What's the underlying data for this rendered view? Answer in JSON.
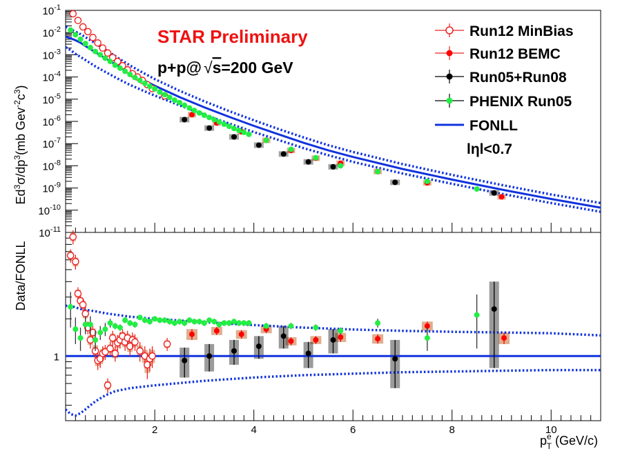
{
  "chart_data": [
    {
      "type": "scatter",
      "panel": "upper",
      "title": "",
      "ylabel": "Ed³σ/dp³(mb GeV⁻²c³)",
      "ylabel_parts": [
        "Ed",
        "3",
        "σ/dp",
        "3",
        "(mb Gev",
        "-2",
        "c",
        "3",
        ")"
      ],
      "xlim": [
        0.2,
        11
      ],
      "ylim": [
        1e-11,
        0.1
      ],
      "log_y": true,
      "y_tick_labels": [
        {
          "v": 0.1,
          "base": "10",
          "exp": "-1"
        },
        {
          "v": 0.01,
          "base": "10",
          "exp": "-2"
        },
        {
          "v": 0.001,
          "base": "10",
          "exp": "-3"
        },
        {
          "v": 0.0001,
          "base": "10",
          "exp": "-4"
        },
        {
          "v": 1e-05,
          "base": "10",
          "exp": "-5"
        },
        {
          "v": 1e-06,
          "base": "10",
          "exp": "-6"
        },
        {
          "v": 1e-07,
          "base": "10",
          "exp": "-7"
        },
        {
          "v": 1e-08,
          "base": "10",
          "exp": "-8"
        },
        {
          "v": 1e-09,
          "base": "10",
          "exp": "-9"
        },
        {
          "v": 1e-10,
          "base": "10",
          "exp": "-10"
        },
        {
          "v": 1e-11,
          "base": "10",
          "exp": "-11"
        }
      ],
      "annotations": {
        "preliminary": "STAR Preliminary",
        "energy_prefix": "p+p@",
        "energy_sqrt": "√",
        "energy_s": "s",
        "energy_suffix": "=200 GeV",
        "eta_cut": "lηl<0.7"
      },
      "legend": {
        "placement": "top-right",
        "entries": [
          "Run12 MinBias",
          "Run12 BEMC",
          "Run05+Run08",
          "PHENIX Run05",
          "FONLL"
        ]
      },
      "series": [
        {
          "name": "Run12 MinBias",
          "color": "#ee2222",
          "marker": "open-circle",
          "x": [
            0.35,
            0.45,
            0.55,
            0.65,
            0.75,
            0.85,
            0.95,
            1.05,
            1.15,
            1.25,
            1.35,
            1.45,
            1.55,
            1.65,
            1.75,
            1.85,
            1.95,
            2.2
          ],
          "y": [
            0.07,
            0.035,
            0.018,
            0.011,
            0.006,
            0.0034,
            0.002,
            0.0012,
            0.00075,
            0.0005,
            0.00032,
            0.00021,
            0.00014,
            0.0001,
            7e-05,
            4.5e-05,
            3e-05,
            1.4e-05
          ]
        },
        {
          "name": "Run12 BEMC",
          "color": "#ff0000",
          "marker": "filled-circle",
          "x": [
            2.75,
            3.25,
            3.75,
            4.25,
            4.75,
            5.25,
            5.75,
            6.5,
            7.5,
            9.0
          ],
          "y": [
            2e-06,
            8.5e-07,
            3.4e-07,
            1.4e-07,
            4.9e-08,
            2.2e-08,
            1.3e-08,
            5.5e-09,
            1.7e-09,
            4e-10
          ]
        },
        {
          "name": "Run05+Run08",
          "color": "#000000",
          "marker": "filled-circle",
          "x": [
            2.6,
            3.1,
            3.6,
            4.1,
            4.6,
            5.1,
            5.6,
            6.85,
            8.85
          ],
          "y": [
            1.2e-06,
            5e-07,
            2e-07,
            8.5e-08,
            3.4e-08,
            1.5e-08,
            9e-09,
            1.8e-09,
            6e-10
          ]
        },
        {
          "name": "PHENIX Run05",
          "color": "#22ee44",
          "marker": "filled-circle",
          "x": [
            0.3,
            0.4,
            0.5,
            0.6,
            0.7,
            0.8,
            0.9,
            1.0,
            1.1,
            1.2,
            1.3,
            1.4,
            1.5,
            1.6,
            1.7,
            1.8,
            1.9,
            2.0,
            2.1,
            2.2,
            2.3,
            2.4,
            2.5,
            2.6,
            2.7,
            2.8,
            2.9,
            3.0,
            3.1,
            3.2,
            3.3,
            3.4,
            3.5,
            3.6,
            3.7,
            3.8,
            3.9,
            4.25,
            4.75,
            5.25,
            5.75,
            6.5,
            7.5,
            8.5
          ],
          "y": [
            0.013,
            0.008,
            0.005,
            0.0032,
            0.0021,
            0.0014,
            0.001,
            0.0007,
            0.0005,
            0.00034,
            0.00025,
            0.00018,
            0.00013,
            9.5e-05,
            7e-05,
            5.2e-05,
            3.8e-05,
            2.9e-05,
            2.1e-05,
            1.6e-05,
            1.2e-05,
            9e-06,
            7e-06,
            5.3e-06,
            4e-06,
            3.1e-06,
            2.4e-06,
            1.9e-06,
            1.5e-06,
            1.2e-06,
            9.5e-07,
            7.5e-07,
            6e-07,
            4.8e-07,
            3.9e-07,
            3.2e-07,
            2.6e-07,
            1.4e-07,
            5.5e-08,
            2.3e-08,
            1e-08,
            5.5e-09,
            2e-09,
            9e-10
          ]
        },
        {
          "name": "FONLL",
          "color": "#1133dd",
          "marker": "line",
          "x": [
            0.2,
            0.3,
            0.4,
            0.5,
            0.6,
            0.8,
            1.0,
            1.25,
            1.5,
            1.75,
            2.0,
            2.5,
            3.0,
            3.5,
            4.0,
            4.5,
            5.0,
            5.5,
            6.0,
            7.0,
            8.0,
            9.0,
            10.0,
            11.0
          ],
          "y": [
            0.0065,
            0.0055,
            0.0045,
            0.0035,
            0.0025,
            0.0013,
            0.0007,
            0.00032,
            0.00015,
            7.6e-05,
            4e-05,
            1.25e-05,
            4.3e-06,
            1.6e-06,
            6.3e-07,
            2.6e-07,
            1.1e-07,
            5e-08,
            2.5e-08,
            7.2e-09,
            2.4e-09,
            8.5e-10,
            3.2e-10,
            1.3e-10
          ]
        },
        {
          "name": "FONLL upper",
          "color": "#1133dd",
          "marker": "dotted-line",
          "x": [
            0.2,
            0.3,
            0.4,
            0.5,
            0.6,
            0.8,
            1.0,
            1.25,
            1.5,
            1.75,
            2.0,
            2.5,
            3.0,
            3.5,
            4.0,
            4.5,
            5.0,
            5.5,
            6.0,
            7.0,
            8.0,
            9.0,
            10.0,
            11.0
          ],
          "y": [
            0.018,
            0.014,
            0.011,
            0.0085,
            0.0062,
            0.0033,
            0.0017,
            0.00074,
            0.00033,
            0.00016,
            8e-05,
            2.4e-05,
            8e-06,
            2.9e-06,
            1.12e-06,
            4.5e-07,
            1.9e-07,
            8.5e-08,
            4.2e-08,
            1.2e-08,
            3.9e-09,
            1.37e-09,
            5.1e-10,
            2.1e-10
          ]
        },
        {
          "name": "FONLL lower",
          "color": "#1133dd",
          "marker": "dotted-line",
          "x": [
            0.2,
            0.3,
            0.4,
            0.5,
            0.6,
            0.8,
            1.0,
            1.25,
            1.5,
            1.75,
            2.0,
            2.5,
            3.0,
            3.5,
            4.0,
            4.5,
            5.0,
            5.5,
            6.0,
            7.0,
            8.0,
            9.0,
            10.0,
            11.0
          ],
          "y": [
            0.0022,
            0.0016,
            0.0011,
            0.0008,
            0.00058,
            0.0003,
            0.00017,
            8.5e-05,
            4.4e-05,
            2.5e-05,
            1.45e-05,
            5.3e-06,
            2e-06,
            8e-07,
            3.3e-07,
            1.45e-07,
            6.3e-08,
            3e-08,
            1.5e-08,
            4.5e-09,
            1.55e-09,
            5.5e-10,
            2.1e-10,
            8.5e-11
          ]
        }
      ]
    },
    {
      "type": "scatter",
      "panel": "lower",
      "ylabel": "Data/FONLL",
      "xlabel_base": "p",
      "xlabel_sup": "e",
      "xlabel_sub": "T",
      "xlabel_rest": " (GeV/c)",
      "xlim": [
        0.2,
        11
      ],
      "ylim": [
        0.3,
        10
      ],
      "log_y": true,
      "x_ticks": [
        2,
        4,
        6,
        8,
        10
      ],
      "x_tick_labels": [
        "2",
        "4",
        "6",
        "8",
        "10"
      ],
      "y_tick_labels": [
        {
          "v": 1,
          "label": "1"
        }
      ],
      "series": [
        {
          "name": "Run12 MinBias",
          "color": "#ee2222",
          "marker": "open-circle",
          "x": [
            0.3,
            0.35,
            0.4,
            0.45,
            0.5,
            0.55,
            0.6,
            0.65,
            0.7,
            0.75,
            0.8,
            0.85,
            0.9,
            0.95,
            1.0,
            1.05,
            1.1,
            1.15,
            1.2,
            1.25,
            1.3,
            1.35,
            1.4,
            1.45,
            1.5,
            1.55,
            1.6,
            1.7,
            1.8,
            1.85,
            1.9,
            1.95,
            2.25
          ],
          "y": [
            6.5,
            9.2,
            5.8,
            3.2,
            2.8,
            2.6,
            2.2,
            1.7,
            1.35,
            1.55,
            1.1,
            0.92,
            0.95,
            1.05,
            1.08,
            0.58,
            1.15,
            1.4,
            1.05,
            1.28,
            1.35,
            1.45,
            1.3,
            1.4,
            1.2,
            1.35,
            1.3,
            1.1,
            1.0,
            0.85,
            0.95,
            1.0,
            1.25
          ],
          "err": [
            0.8,
            1.2,
            0.8,
            0.4,
            0.3,
            0.3,
            0.3,
            0.2,
            0.2,
            0.2,
            0.2,
            0.15,
            0.15,
            0.15,
            0.15,
            0.08,
            0.15,
            0.2,
            0.15,
            0.2,
            0.2,
            0.2,
            0.2,
            0.2,
            0.2,
            0.2,
            0.2,
            0.2,
            0.2,
            0.2,
            0.2,
            0.2,
            0.15
          ]
        },
        {
          "name": "Run12 BEMC",
          "color": "#ff0000",
          "marker": "filled-circle",
          "x": [
            2.75,
            3.25,
            3.75,
            4.25,
            4.75,
            5.25,
            5.75,
            6.5,
            7.5,
            9.05
          ],
          "y": [
            1.5,
            1.6,
            1.5,
            1.65,
            1.32,
            1.35,
            1.42,
            1.38,
            1.75,
            1.4
          ],
          "err": [
            0.15,
            0.12,
            0.12,
            0.12,
            0.1,
            0.1,
            0.12,
            0.12,
            0.15,
            0.15
          ]
        },
        {
          "name": "Run05+Run08",
          "color": "#000000",
          "marker": "filled-circle",
          "x": [
            2.6,
            3.1,
            3.6,
            4.1,
            4.6,
            5.1,
            5.6,
            6.85,
            8.85
          ],
          "y": [
            0.92,
            1.0,
            1.1,
            1.2,
            1.45,
            1.05,
            1.35,
            0.95,
            2.4
          ],
          "err": [
            0.25,
            0.25,
            0.25,
            0.25,
            0.3,
            0.25,
            0.3,
            0.4,
            1.6
          ]
        },
        {
          "name": "PHENIX Run05",
          "color": "#22ee44",
          "marker": "filled-circle",
          "x": [
            0.3,
            0.4,
            0.5,
            0.6,
            0.7,
            0.8,
            0.9,
            1.0,
            1.1,
            1.2,
            1.3,
            1.4,
            1.5,
            1.6,
            1.7,
            1.8,
            1.9,
            2.0,
            2.1,
            2.2,
            2.3,
            2.4,
            2.5,
            2.6,
            2.7,
            2.8,
            2.9,
            3.0,
            3.1,
            3.2,
            3.3,
            3.4,
            3.5,
            3.6,
            3.7,
            3.8,
            3.9,
            4.25,
            4.75,
            5.25,
            5.75,
            6.5,
            7.5,
            8.5
          ],
          "y": [
            2.5,
            1.65,
            1.4,
            1.8,
            1.8,
            1.35,
            1.55,
            1.65,
            1.85,
            1.75,
            1.7,
            1.95,
            1.85,
            1.8,
            2.05,
            1.95,
            1.9,
            2.0,
            1.95,
            1.95,
            1.9,
            1.85,
            1.9,
            1.85,
            1.95,
            1.9,
            1.9,
            1.85,
            1.95,
            1.9,
            1.8,
            1.85,
            1.85,
            1.9,
            1.85,
            1.85,
            1.85,
            1.75,
            1.75,
            1.7,
            1.6,
            1.85,
            1.4,
            2.15
          ],
          "err": [
            0.8,
            0.4,
            0.3,
            0.3,
            0.3,
            0.25,
            0.2,
            0.2,
            0.15,
            0.1,
            0.1,
            0.1,
            0.1,
            0.1,
            0.1,
            0.1,
            0.1,
            0.1,
            0.1,
            0.1,
            0.1,
            0.1,
            0.1,
            0.1,
            0.1,
            0.1,
            0.1,
            0.1,
            0.1,
            0.1,
            0.1,
            0.1,
            0.1,
            0.1,
            0.1,
            0.1,
            0.1,
            0.1,
            0.1,
            0.1,
            0.1,
            0.15,
            0.3,
            1.0
          ]
        },
        {
          "name": "FONLL",
          "color": "#1133dd",
          "marker": "line",
          "x": [
            0.2,
            11.0
          ],
          "y": [
            1.0,
            1.0
          ]
        },
        {
          "name": "FONLL upper",
          "color": "#1133dd",
          "marker": "dotted-line",
          "x": [
            0.2,
            0.3,
            0.5,
            0.8,
            1.0,
            1.5,
            2.0,
            3.0,
            4.0,
            5.0,
            6.0,
            7.0,
            8.0,
            9.0,
            10.0,
            11.0
          ],
          "y": [
            2.55,
            2.55,
            2.4,
            2.3,
            2.22,
            2.08,
            2.0,
            1.88,
            1.78,
            1.7,
            1.64,
            1.6,
            1.57,
            1.55,
            1.53,
            1.47
          ]
        },
        {
          "name": "FONLL lower",
          "color": "#1133dd",
          "marker": "dotted-line",
          "x": [
            0.2,
            0.3,
            0.4,
            0.5,
            0.6,
            0.7,
            0.8,
            1.0,
            1.2,
            1.5,
            2.0,
            3.0,
            4.0,
            5.0,
            6.0,
            7.0,
            8.0,
            9.0,
            10.0,
            11.0
          ],
          "y": [
            0.37,
            0.34,
            0.33,
            0.345,
            0.37,
            0.4,
            0.43,
            0.48,
            0.52,
            0.55,
            0.58,
            0.63,
            0.67,
            0.7,
            0.72,
            0.74,
            0.75,
            0.76,
            0.77,
            0.77
          ]
        }
      ]
    }
  ]
}
